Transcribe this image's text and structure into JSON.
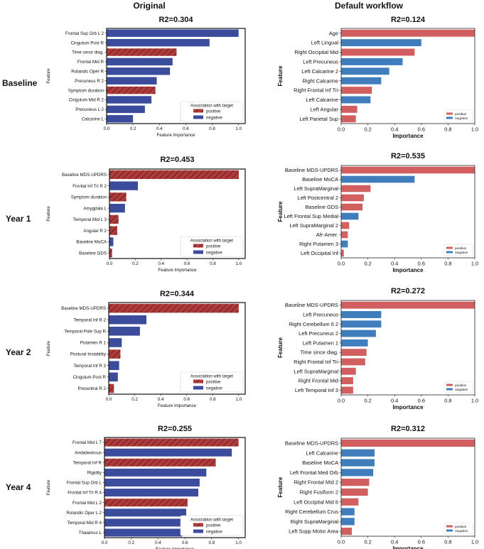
{
  "headers": {
    "left": "Original",
    "right": "Default workflow"
  },
  "row_labels": [
    "Baseline",
    "Year 1",
    "Year 2",
    "Year 4"
  ],
  "colors": {
    "positive_orig": "#b03a3a",
    "negative_orig": "#3c4c9c",
    "positive_dw": "#d25f5f",
    "negative_dw": "#3f7dbd"
  },
  "legend_orig": {
    "title": "Association with target",
    "positive": "positive",
    "negative": "negative"
  },
  "legend_dw": {
    "positive": "positive",
    "negative": "negative"
  },
  "chart_data": [
    {
      "type": "bar",
      "title": "R2=0.304",
      "xlabel": "Feature Importance",
      "ylabel": "Feature",
      "xlim": [
        0,
        1.05
      ],
      "xticks": [
        0.0,
        0.2,
        0.4,
        0.6,
        0.8,
        1.0
      ],
      "style": "orig",
      "row": 0,
      "col": 0,
      "categories": [
        "Frontal Sup Orb L 2",
        "Cingulum Post R",
        "Time since diag.",
        "Frontal Mid R",
        "Rolandic Oper R",
        "Precuneus R 2",
        "Symptom duration",
        "Cingulum Mid R 2",
        "Precuneus L 2",
        "Calcarine L"
      ],
      "values": [
        1.0,
        0.78,
        0.53,
        0.5,
        0.48,
        0.38,
        0.37,
        0.34,
        0.29,
        0.2
      ],
      "associations": [
        "negative",
        "negative",
        "positive",
        "negative",
        "negative",
        "negative",
        "positive",
        "negative",
        "negative",
        "negative"
      ]
    },
    {
      "type": "bar",
      "title": "R2=0.124",
      "xlabel": "Importance",
      "ylabel": "Feature",
      "xlim": [
        0,
        1.0
      ],
      "xticks": [
        0.0,
        0.2,
        0.4,
        0.6,
        0.8,
        1.0
      ],
      "style": "dw",
      "row": 0,
      "col": 1,
      "categories": [
        "Age",
        "Left Lingual",
        "Right Occipital Mid",
        "Left Precuneus",
        "Left Calcarine 2",
        "Right Calcarine",
        "Right Frontal Inf Tri",
        "Left Calcarine",
        "Left Angular",
        "Left Parietal Sup"
      ],
      "values": [
        1.0,
        0.6,
        0.55,
        0.46,
        0.36,
        0.3,
        0.23,
        0.22,
        0.12,
        0.11
      ],
      "associations": [
        "positive",
        "negative",
        "positive",
        "negative",
        "negative",
        "negative",
        "positive",
        "negative",
        "positive",
        "positive"
      ]
    },
    {
      "type": "bar",
      "title": "R2=0.453",
      "xlabel": "Feature Importance",
      "ylabel": "Feature",
      "xlim": [
        0,
        1.05
      ],
      "xticks": [
        0.0,
        0.2,
        0.4,
        0.6,
        0.8,
        1.0
      ],
      "style": "orig",
      "row": 1,
      "col": 0,
      "categories": [
        "Baseline MDS-UPDRS",
        "Frontal Inf Tri R 2",
        "Symptom duration",
        "Amygdala L",
        "Temporal Mid L 3",
        "Angular R 2",
        "Baseline MoCA",
        "Baseline GDS"
      ],
      "values": [
        1.0,
        0.22,
        0.13,
        0.12,
        0.07,
        0.06,
        0.03,
        0.02
      ],
      "associations": [
        "positive",
        "negative",
        "positive",
        "negative",
        "positive",
        "positive",
        "negative",
        "positive"
      ]
    },
    {
      "type": "bar",
      "title": "R2=0.535",
      "xlabel": "Importance",
      "ylabel": "Feature",
      "xlim": [
        0,
        1.0
      ],
      "xticks": [
        0.0,
        0.2,
        0.4,
        0.6,
        0.8,
        1.0
      ],
      "style": "dw",
      "row": 1,
      "col": 1,
      "categories": [
        "Baseline MDS-UPDRS",
        "Baseline MoCA",
        "Left SupraMarginal",
        "Left Postcentral 2",
        "Baseline GDS",
        "Left Frontal Sup Medial",
        "Left SupraMarginal 2",
        "Afr-Amer.",
        "Right Putamen 3",
        "Left Occipital Inf"
      ],
      "values": [
        1.0,
        0.55,
        0.22,
        0.17,
        0.16,
        0.13,
        0.06,
        0.05,
        0.05,
        0.02
      ],
      "associations": [
        "positive",
        "negative",
        "positive",
        "positive",
        "positive",
        "negative",
        "positive",
        "positive",
        "negative",
        "positive"
      ]
    },
    {
      "type": "bar",
      "title": "R2=0.344",
      "xlabel": "Feature Importance",
      "ylabel": "Feature",
      "xlim": [
        0,
        1.05
      ],
      "xticks": [
        0.0,
        0.2,
        0.4,
        0.6,
        0.8,
        1.0
      ],
      "style": "orig",
      "row": 2,
      "col": 0,
      "categories": [
        "Baseline MDS-UPDRS",
        "Temporal Inf R 2",
        "Temporal Pole Sup R",
        "Putamen R 1",
        "Postural Instability",
        "Temporal Inf R 3",
        "Cingulum Post R",
        "Precentral R 2"
      ],
      "values": [
        1.0,
        0.29,
        0.24,
        0.1,
        0.09,
        0.08,
        0.07,
        0.04
      ],
      "associations": [
        "positive",
        "negative",
        "negative",
        "negative",
        "positive",
        "negative",
        "negative",
        "positive"
      ]
    },
    {
      "type": "bar",
      "title": "R2=0.272",
      "xlabel": "Importance",
      "ylabel": "Feature",
      "xlim": [
        0,
        1.0
      ],
      "xticks": [
        0.0,
        0.2,
        0.4,
        0.6,
        0.8,
        1.0
      ],
      "style": "dw",
      "row": 2,
      "col": 1,
      "categories": [
        "Baseline MDS-UPDRS",
        "Left Precuneus",
        "Right Cerebellum 6 2",
        "Left Precuneus 2",
        "Left Putamen 1",
        "Time since diag.",
        "Right Frontal Inf Tri",
        "Left SupraMarginal",
        "Right Frontal Mid",
        "Left Temporal Inf 3"
      ],
      "values": [
        1.0,
        0.3,
        0.3,
        0.26,
        0.2,
        0.19,
        0.18,
        0.11,
        0.09,
        0.09
      ],
      "associations": [
        "positive",
        "negative",
        "negative",
        "negative",
        "negative",
        "positive",
        "positive",
        "positive",
        "positive",
        "positive"
      ]
    },
    {
      "type": "bar",
      "title": "R2=0.255",
      "xlabel": "Feature Importance",
      "ylabel": "Feature",
      "xlim": [
        0,
        1.05
      ],
      "xticks": [
        0.0,
        0.2,
        0.4,
        0.6,
        0.8,
        1.0
      ],
      "style": "orig",
      "row": 3,
      "col": 0,
      "categories": [
        "Frontal Mid L 7",
        "Ambidextrous",
        "Temporal Inf R",
        "Rigidity",
        "Frontal Sup Orb L",
        "Frontal Inf Tri R 4",
        "Frontal Mid L 2",
        "Rolandic Oper L 2",
        "Temporal Mid R 4",
        "Thalamus L"
      ],
      "values": [
        1.0,
        0.95,
        0.83,
        0.76,
        0.71,
        0.7,
        0.62,
        0.61,
        0.6,
        0.58
      ],
      "associations": [
        "positive",
        "negative",
        "positive",
        "negative",
        "negative",
        "negative",
        "positive",
        "negative",
        "negative",
        "negative"
      ]
    },
    {
      "type": "bar",
      "title": "R2=0.312",
      "xlabel": "Importance",
      "ylabel": "Feature",
      "xlim": [
        0,
        1.0
      ],
      "xticks": [
        0.0,
        0.2,
        0.4,
        0.6,
        0.8,
        1.0
      ],
      "style": "dw",
      "row": 3,
      "col": 1,
      "categories": [
        "Baseline MDS-UPDRS",
        "Left Calcarine",
        "Baseline MoCA",
        "Left Frontal Med Orb",
        "Right Frontal Mid 2",
        "Right Fusiform 2",
        "Left Occipital Mid 6",
        "Right Cerebellum Crus",
        "Right SupraMarginal",
        "Left Supp Motor Area"
      ],
      "values": [
        1.0,
        0.25,
        0.25,
        0.24,
        0.21,
        0.2,
        0.13,
        0.1,
        0.1,
        0.08
      ],
      "associations": [
        "positive",
        "negative",
        "negative",
        "negative",
        "positive",
        "positive",
        "positive",
        "negative",
        "negative",
        "positive"
      ]
    }
  ]
}
